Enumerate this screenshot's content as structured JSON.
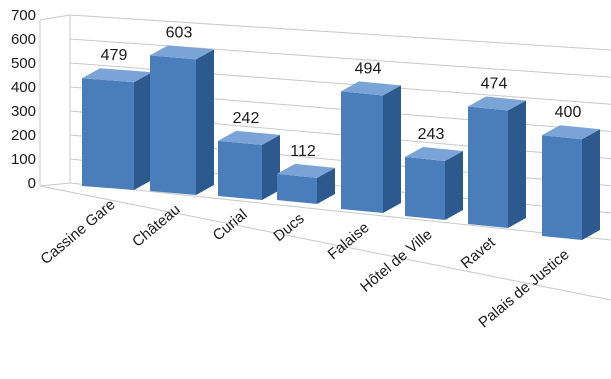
{
  "chart_data": {
    "type": "bar",
    "style": "3d-perspective",
    "categories": [
      "Cassine Gare",
      "Château",
      "Curial",
      "Ducs",
      "Falaise",
      "Hôtel de Ville",
      "Ravet",
      "Palais de Justice"
    ],
    "values": [
      479,
      603,
      242,
      112,
      494,
      243,
      474,
      400
    ],
    "yticks": [
      0,
      100,
      200,
      300,
      400,
      500,
      600,
      700
    ],
    "ylim": [
      0,
      700
    ],
    "grid": true,
    "legend": false,
    "data_labels": true,
    "colors": {
      "front": "#4a7ebb",
      "side": "#2c5a8e",
      "top": "#7aa3d6",
      "grid": "#c8c8c8"
    }
  }
}
